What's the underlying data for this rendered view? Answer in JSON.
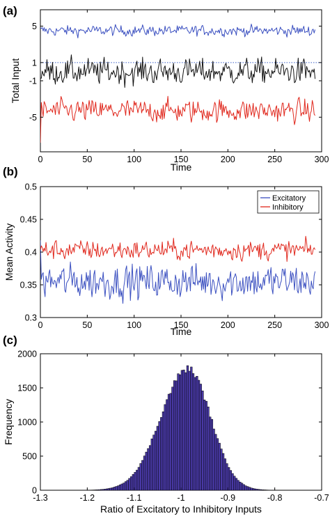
{
  "chart_data": [
    {
      "panel_label": "(a)",
      "type": "line",
      "xlabel": "Time",
      "ylabel": "Total Input",
      "xlim": [
        0,
        300
      ],
      "ylim": [
        -8.8,
        6.8
      ],
      "xticks": [
        0,
        50,
        100,
        150,
        200,
        250,
        300
      ],
      "xtick_labels": [
        "0",
        "50",
        "100",
        "150",
        "200",
        "250",
        "300"
      ],
      "yticks": [
        -5,
        -1,
        1,
        5
      ],
      "ytick_labels": [
        "-5",
        "-1",
        "1",
        "5"
      ],
      "reference_line": {
        "y": 1,
        "style": "dotted",
        "color": "#3a5fc8"
      },
      "x_end": 293,
      "series": [
        {
          "color": "#3a4fc0",
          "mean": 4.5,
          "amplitude": 0.35
        },
        {
          "color": "#111111",
          "mean": 0.0,
          "amplitude": 0.85
        },
        {
          "color": "#e0261b",
          "mean": -4.3,
          "amplitude": 0.75,
          "start_value": -7.8
        }
      ]
    },
    {
      "panel_label": "(b)",
      "type": "line",
      "xlabel": "Time",
      "ylabel": "Mean Activity",
      "xlim": [
        0,
        300
      ],
      "ylim": [
        0.3,
        0.5
      ],
      "xticks": [
        0,
        50,
        100,
        150,
        200,
        250,
        300
      ],
      "xtick_labels": [
        "0",
        "50",
        "100",
        "150",
        "200",
        "250",
        "300"
      ],
      "yticks": [
        0.3,
        0.35,
        0.4,
        0.45,
        0.5
      ],
      "ytick_labels": [
        "0.3",
        "0.35",
        "0.4",
        "0.45",
        "0.5"
      ],
      "legend": {
        "placement": "top-right",
        "entries": [
          "Excitatory",
          "Inhibitory"
        ]
      },
      "x_end": 293,
      "series": [
        {
          "name": "Excitatory",
          "color": "#3a4fc0",
          "mean": 0.355,
          "amplitude": 0.016,
          "start_value": 0.418
        },
        {
          "name": "Inhibitory",
          "color": "#e0261b",
          "mean": 0.403,
          "amplitude": 0.009
        }
      ]
    },
    {
      "panel_label": "(c)",
      "type": "bar",
      "subtype": "histogram",
      "xlabel": "Ratio of Excitatory to Inhibitory Inputs",
      "ylabel": "Frequency",
      "xlim": [
        -1.3,
        -0.7
      ],
      "ylim": [
        0,
        2000
      ],
      "xticks": [
        -1.3,
        -1.2,
        -1.1,
        -1.0,
        -0.9,
        -0.8,
        -0.7
      ],
      "xtick_labels": [
        "-1.3",
        "-1.2",
        "-1.1",
        "-1",
        "-0.9",
        "-0.8",
        "-0.7"
      ],
      "yticks": [
        0,
        500,
        1000,
        1500,
        2000
      ],
      "ytick_labels": [
        "0",
        "500",
        "1000",
        "1500",
        "2000"
      ],
      "bar_color": "#4a3aa8",
      "bin_width": 0.004,
      "peak_x": -0.985,
      "peak_frequency": 1780,
      "sigma_left": 0.058,
      "sigma_right": 0.048
    }
  ]
}
